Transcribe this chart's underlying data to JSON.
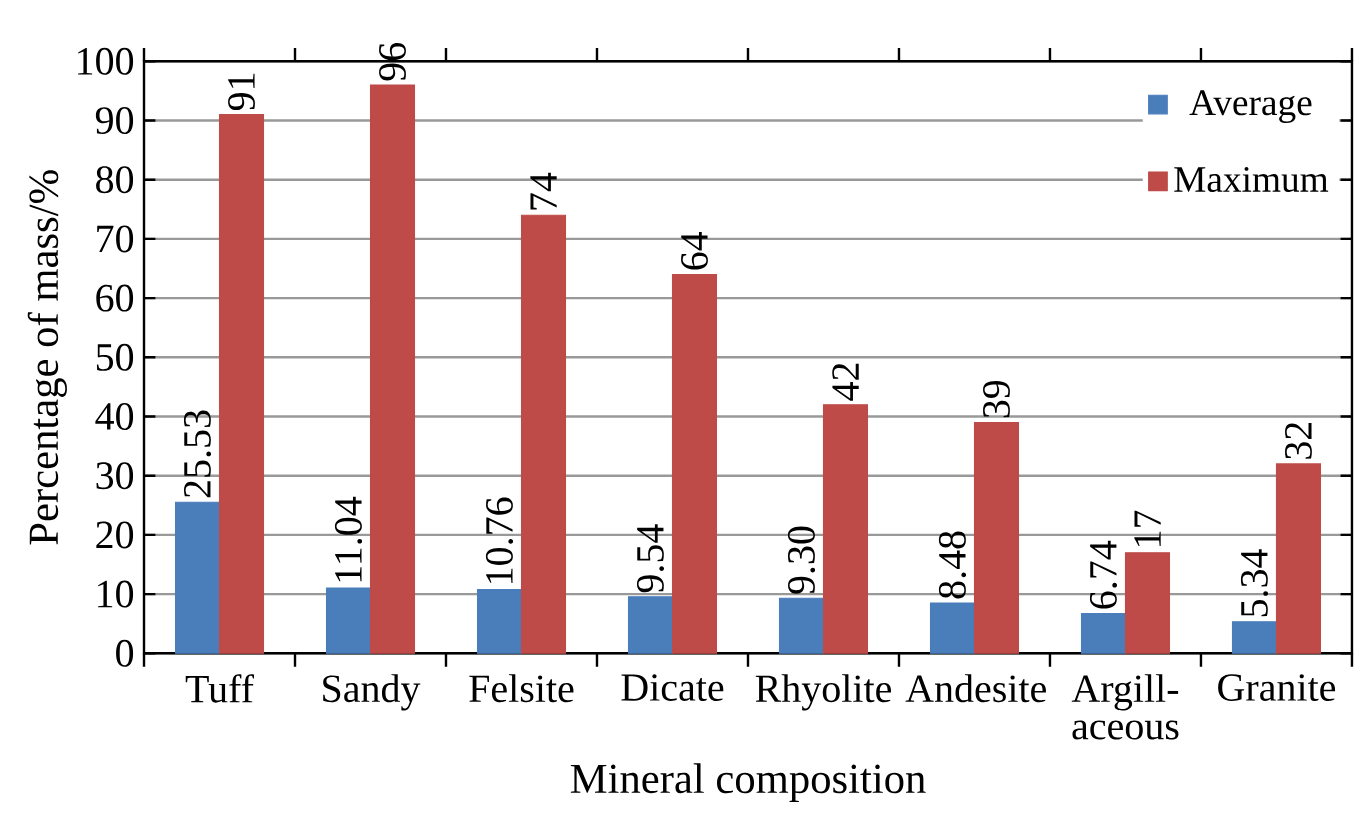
{
  "chart_data": {
    "type": "bar",
    "xlabel": "Mineral composition",
    "ylabel": "Percentage of mass/%",
    "categories": [
      "Tuff",
      "Sandy",
      "Felsite",
      "Dicate",
      "Rhyolite",
      "Andesite",
      "Argill- aceous",
      "Granite"
    ],
    "series": [
      {
        "name": "Average",
        "color": "#4a7ebb",
        "values": [
          25.53,
          11.04,
          10.76,
          9.54,
          9.3,
          8.48,
          6.74,
          5.34
        ],
        "value_labels": [
          "25.53",
          "11.04",
          "10.76",
          "9.54",
          "9.30",
          "8.48",
          "6.74",
          "5.34"
        ]
      },
      {
        "name": "Maximum",
        "color": "#be4b48",
        "values": [
          91,
          96,
          74,
          64,
          42,
          39,
          17,
          32
        ],
        "value_labels": [
          "91",
          "96",
          "74",
          "64",
          "42",
          "39",
          "17",
          "32"
        ]
      }
    ],
    "ylim": [
      0,
      100
    ],
    "yticks": [
      0,
      10,
      20,
      30,
      40,
      50,
      60,
      70,
      80,
      90,
      100
    ],
    "grid": "y",
    "legend": "top right"
  }
}
